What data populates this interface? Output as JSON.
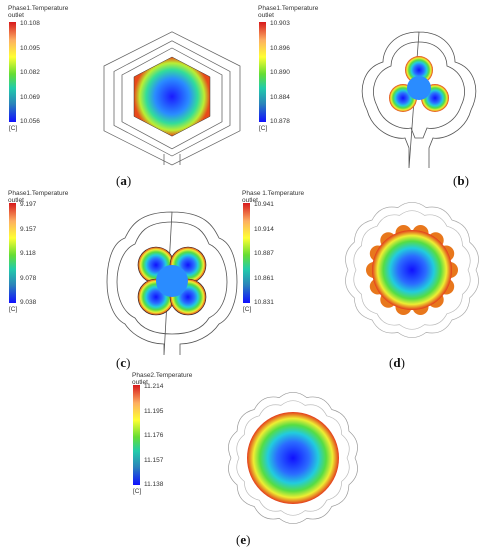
{
  "panels": [
    {
      "id": "a",
      "label": "a",
      "legend": {
        "title_line1": "Phase1.Temperature",
        "title_line2": "outlet",
        "ticks": [
          "10.108",
          "10.095",
          "10.082",
          "10.069",
          "10.056"
        ],
        "unit": "[C]"
      }
    },
    {
      "id": "b",
      "label": "b",
      "legend": {
        "title_line1": "Phase1.Temperature",
        "title_line2": "outlet",
        "ticks": [
          "10.903",
          "10.896",
          "10.890",
          "10.884",
          "10.878"
        ],
        "unit": "[C]"
      }
    },
    {
      "id": "c",
      "label": "c",
      "legend": {
        "title_line1": "Phase1.Temperature",
        "title_line2": "outlet",
        "ticks": [
          "9.197",
          "9.157",
          "9.118",
          "9.078",
          "9.038"
        ],
        "unit": "[C]"
      }
    },
    {
      "id": "d",
      "label": "d",
      "legend": {
        "title_line1": "Phase 1.Temperature",
        "title_line2": "outlet",
        "ticks": [
          "10.941",
          "10.914",
          "10.887",
          "10.861",
          "10.831"
        ],
        "unit": "[C]"
      }
    },
    {
      "id": "e",
      "label": "e",
      "legend": {
        "title_line1": "Phase2.Temperature",
        "title_line2": "outlet",
        "ticks": [
          "11.214",
          "11.195",
          "11.176",
          "11.157",
          "11.138"
        ],
        "unit": "[C]"
      }
    }
  ]
}
